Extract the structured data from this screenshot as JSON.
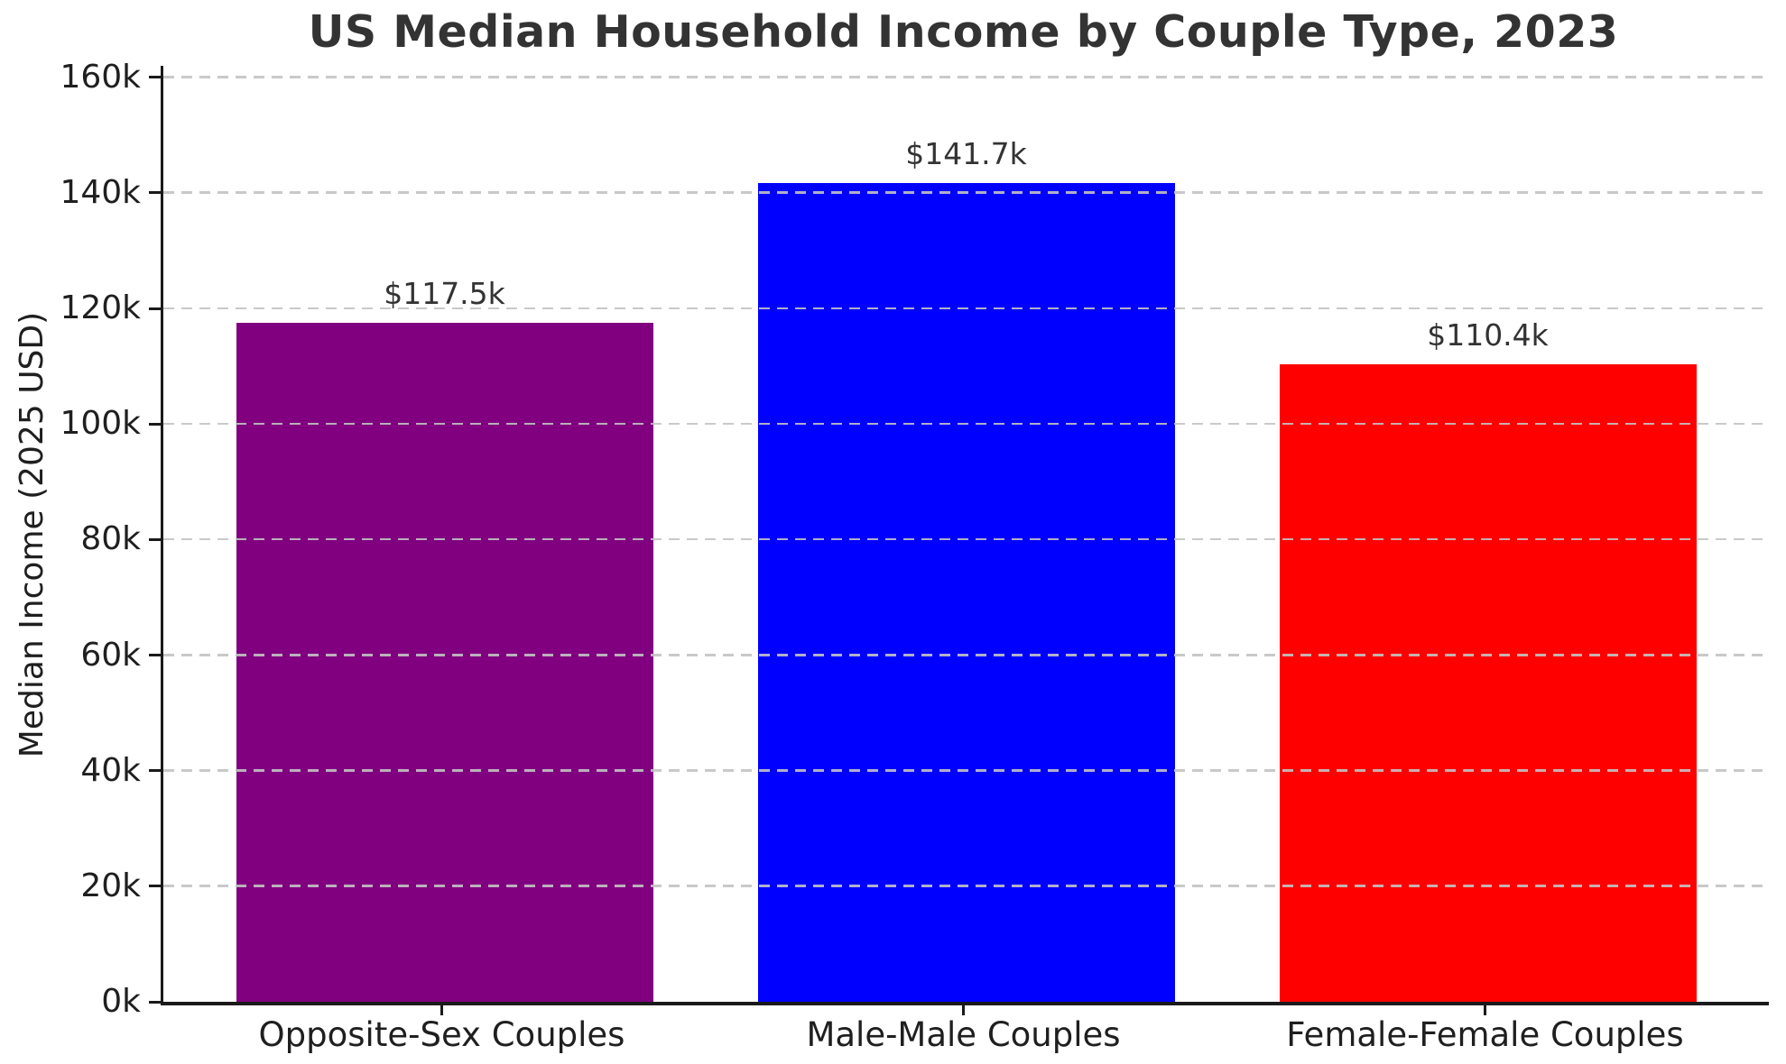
{
  "title": "US Median Household Income by Couple Type, 2023",
  "chart_data": {
    "type": "bar",
    "title": "US Median Household Income by Couple Type, 2023",
    "categories": [
      "Opposite-Sex Couples",
      "Male-Male Couples",
      "Female-Female Couples"
    ],
    "values": [
      117.5,
      141.7,
      110.4
    ],
    "value_labels": [
      "$117.5k",
      "$141.7k",
      "$110.4k"
    ],
    "bar_colors": [
      "#800080",
      "#0000ff",
      "#ff0000"
    ],
    "xlabel": "",
    "ylabel": "Median Income (2025 USD)",
    "ylim": [
      0,
      162
    ],
    "yticks": [
      0,
      20,
      40,
      60,
      80,
      100,
      120,
      140,
      160
    ],
    "ytick_labels": [
      "0k",
      "20k",
      "40k",
      "60k",
      "80k",
      "100k",
      "120k",
      "140k",
      "160k"
    ],
    "grid": "horizontal dashed, drawn above bars",
    "legend": "none",
    "units": "thousands of 2025 USD"
  },
  "style_colors": {
    "background": "#ffffff",
    "title_text": "#333333",
    "tick_text": "#1f1f1f",
    "value_label_text": "#333333",
    "gridline": "#c3c3c3",
    "spine": "#1a1a1a"
  }
}
